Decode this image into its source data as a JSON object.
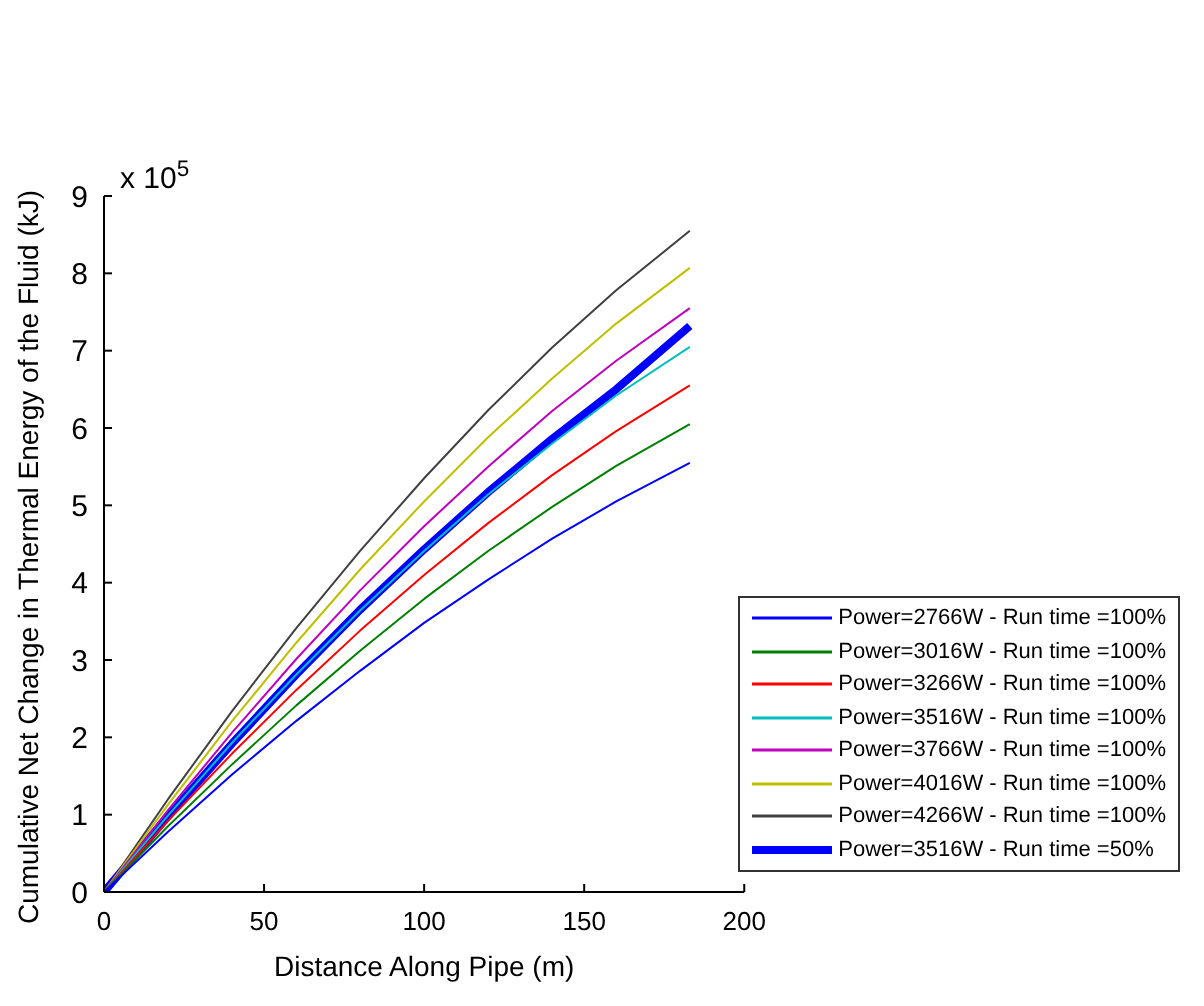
{
  "chart_data": {
    "type": "line",
    "xlabel": "Distance Along Pipe (m)",
    "ylabel": "Cumulative Net Change in Thermal Energy of the Fluid (kJ)",
    "annotations": [
      "x 10$^{5}$"
    ],
    "x": [
      0,
      20,
      40,
      60,
      80,
      100,
      120,
      140,
      160,
      183
    ],
    "xlim": [
      0,
      200
    ],
    "xticks": [
      0,
      50,
      100,
      150,
      200
    ],
    "ylim": [
      0,
      9
    ],
    "yticks": [
      0,
      1,
      2,
      3,
      4,
      5,
      6,
      7,
      8,
      9
    ],
    "grid": false,
    "legend": "bottom right",
    "marker": "none",
    "line_style": "solid",
    "series": [
      {
        "name": "Power=2766W - Run time =100%",
        "color": "#0000ff",
        "values": [
          0,
          0.78,
          1.52,
          2.21,
          2.86,
          3.48,
          4.04,
          4.57,
          5.05,
          5.55
        ]
      },
      {
        "name": "Power=3016W - Run time =100%",
        "color": "#008000",
        "values": [
          0,
          0.85,
          1.65,
          2.41,
          3.12,
          3.79,
          4.41,
          4.98,
          5.51,
          6.05
        ]
      },
      {
        "name": "Power=3266W - Run time =100%",
        "color": "#ff0000",
        "values": [
          0,
          0.92,
          1.79,
          2.61,
          3.38,
          4.1,
          4.77,
          5.39,
          5.96,
          6.55
        ]
      },
      {
        "name": "Power=3516W - Run time =100%",
        "color": "#00bfbf",
        "values": [
          0,
          0.99,
          1.93,
          2.81,
          3.64,
          4.41,
          5.14,
          5.8,
          6.42,
          7.05
        ]
      },
      {
        "name": "Power=3766W - Run time =100%",
        "color": "#bf00bf",
        "values": [
          0,
          1.06,
          2.06,
          3.01,
          3.9,
          4.73,
          5.5,
          6.22,
          6.87,
          7.55
        ]
      },
      {
        "name": "Power=4016W - Run time =100%",
        "color": "#bfbf00",
        "values": [
          0,
          1.13,
          2.21,
          3.22,
          4.17,
          5.05,
          5.88,
          6.64,
          7.35,
          8.07
        ]
      },
      {
        "name": "Power=4266W - Run time =100%",
        "color": "#404040",
        "values": [
          0,
          1.2,
          2.34,
          3.41,
          4.41,
          5.35,
          6.23,
          7.04,
          7.78,
          8.55
        ]
      },
      {
        "name": "Power=3516W - Run time =50%",
        "color": "#0000ff",
        "values": [
          0,
          0.98,
          1.92,
          2.81,
          3.65,
          4.43,
          5.17,
          5.86,
          6.5,
          7.32
        ]
      }
    ]
  }
}
